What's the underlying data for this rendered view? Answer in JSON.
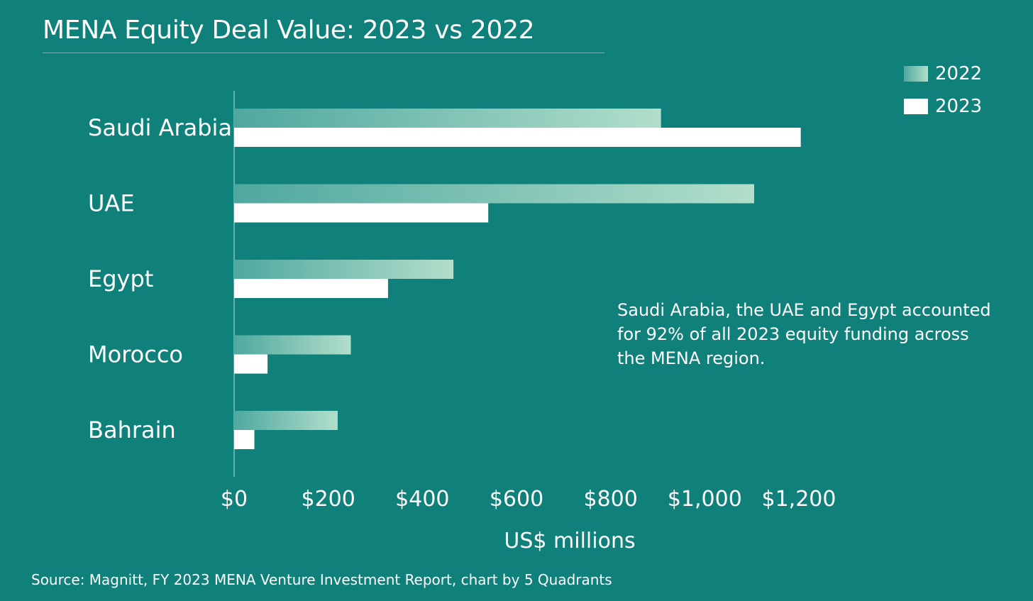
{
  "chart_data": {
    "type": "bar",
    "orientation": "horizontal",
    "title": "MENA Equity Deal Value: 2023 vs 2022",
    "categories": [
      "Saudi Arabia",
      "UAE",
      "Egypt",
      "Morocco",
      "Bahrain"
    ],
    "series": [
      {
        "name": "2022",
        "values": [
          907,
          1105,
          466,
          248,
          220
        ]
      },
      {
        "name": "2023",
        "values": [
          1204,
          540,
          327,
          71,
          43
        ]
      }
    ],
    "xlabel": "US$ millions",
    "ylabel": "",
    "xlim": [
      0,
      1200
    ],
    "x_ticks": [
      "$0",
      "$200",
      "$400",
      "$600",
      "$800",
      "$1,000",
      "$1,200"
    ],
    "grid": false,
    "legend_position": "top-right",
    "annotation": "Saudi Arabia, the UAE and Egypt accounted\n for 92% of all 2023 equity funding across\nthe MENA region.",
    "source": "Source: Magnitt, FY 2023 MENA Venture Investment Report, chart by 5 Quadrants",
    "colors": {
      "background": "#0f807a",
      "series_2022_start": "#4fa89f",
      "series_2022_end": "#b2decb",
      "series_2023": "#ffffff",
      "axis": "#7fbfba"
    }
  }
}
